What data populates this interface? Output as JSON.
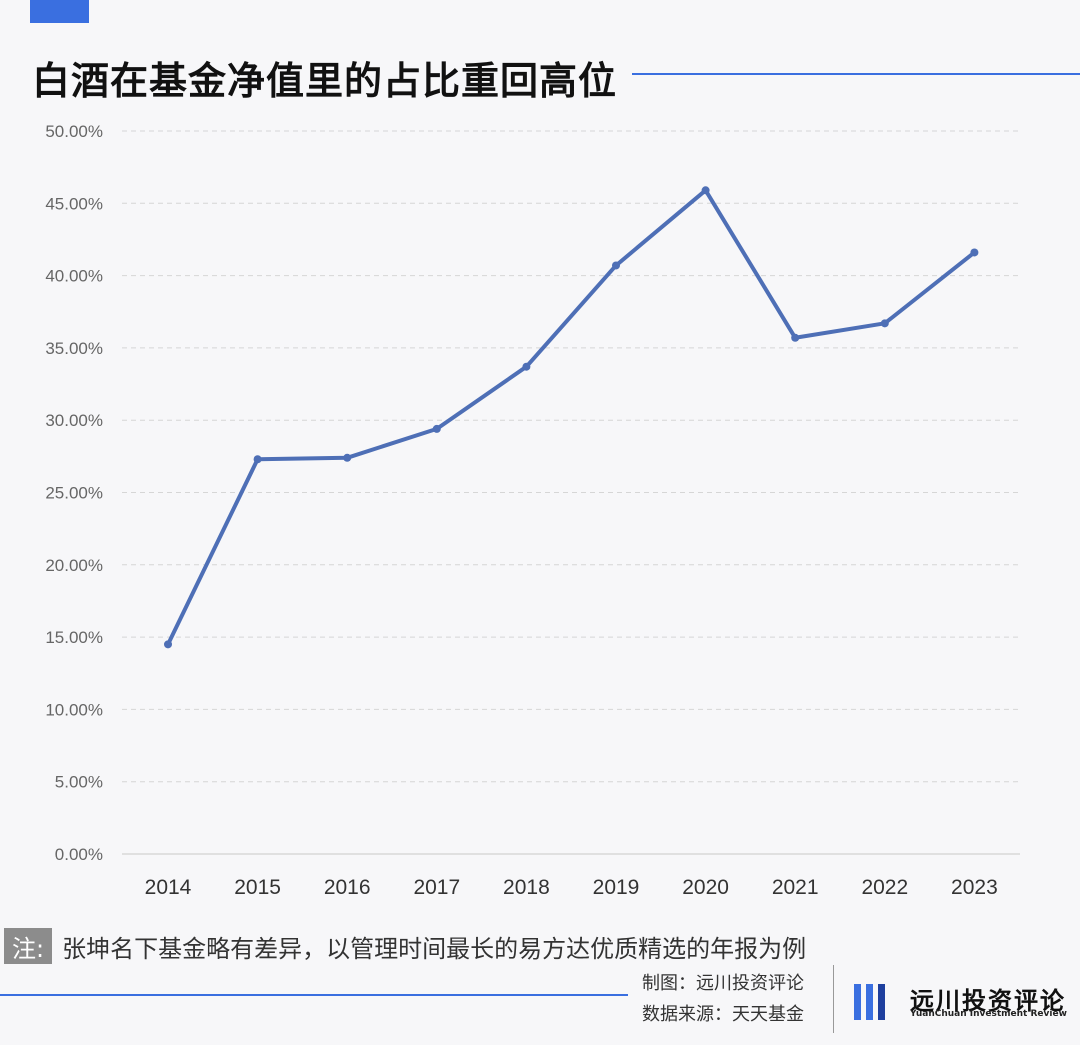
{
  "header": {
    "title": "白酒在基金净值里的占比重回高位"
  },
  "colors": {
    "accent": "#3a6fe0",
    "line": "#4e6fb6",
    "grid": "#d6d6d6",
    "background": "#f7f7f9"
  },
  "chart_data": {
    "type": "line",
    "title": "白酒在基金净值里的占比重回高位",
    "xlabel": "",
    "ylabel": "",
    "categories": [
      "2014",
      "2015",
      "2016",
      "2017",
      "2018",
      "2019",
      "2020",
      "2021",
      "2022",
      "2023"
    ],
    "series": [
      {
        "values": [
          14.5,
          27.3,
          27.4,
          29.4,
          33.7,
          40.7,
          45.9,
          35.7,
          36.7,
          41.6
        ]
      }
    ],
    "ylim": [
      0,
      50
    ],
    "yticks": [
      "0.00%",
      "5.00%",
      "10.00%",
      "15.00%",
      "20.00%",
      "25.00%",
      "30.00%",
      "35.00%",
      "40.00%",
      "45.00%",
      "50.00%"
    ],
    "grid": true,
    "legend": "none"
  },
  "footer": {
    "note_tag": "注:",
    "note_text": "张坤名下基金略有差异，以管理时间最长的易方达优质精选的年报为例",
    "credit_made": "制图：远川投资评论",
    "credit_source": "数据来源：天天基金",
    "logo_name": "远川投资评论",
    "logo_en": "YuanChuan Investment Review",
    "logo_icon": "vertical-bars-logo-icon"
  }
}
